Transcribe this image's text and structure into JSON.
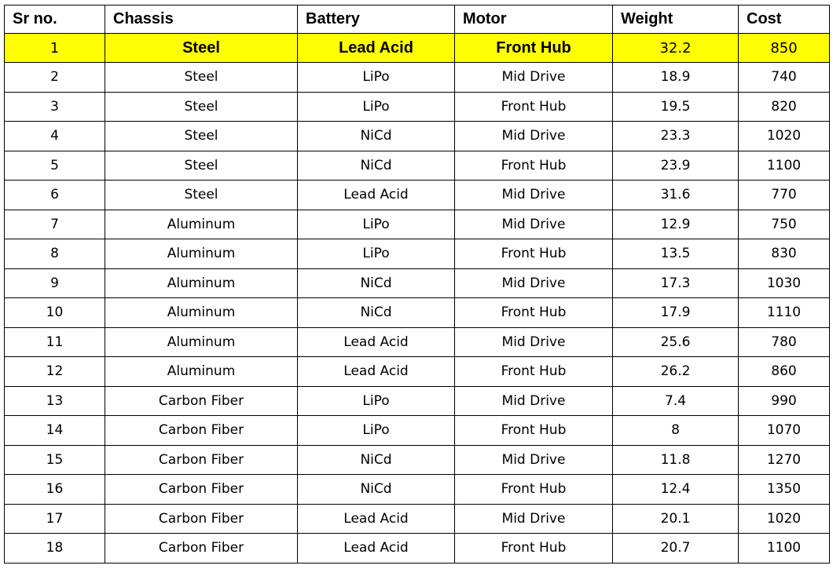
{
  "table": {
    "headers": [
      "Sr no.",
      "Chassis",
      "Battery",
      "Motor",
      "Weight",
      "Cost"
    ],
    "highlight_color": "#ffff00",
    "highlighted_row": 0,
    "rows": [
      [
        "1",
        "Steel",
        "Lead Acid",
        "Front Hub",
        "32.2",
        "850"
      ],
      [
        "2",
        "Steel",
        "LiPo",
        "Mid Drive",
        "18.9",
        "740"
      ],
      [
        "3",
        "Steel",
        "LiPo",
        "Front Hub",
        "19.5",
        "820"
      ],
      [
        "4",
        "Steel",
        "NiCd",
        "Mid Drive",
        "23.3",
        "1020"
      ],
      [
        "5",
        "Steel",
        "NiCd",
        "Front Hub",
        "23.9",
        "1100"
      ],
      [
        "6",
        "Steel",
        "Lead Acid",
        "Mid Drive",
        "31.6",
        "770"
      ],
      [
        "7",
        "Aluminum",
        "LiPo",
        "Mid Drive",
        "12.9",
        "750"
      ],
      [
        "8",
        "Aluminum",
        "LiPo",
        "Front Hub",
        "13.5",
        "830"
      ],
      [
        "9",
        "Aluminum",
        "NiCd",
        "Mid Drive",
        "17.3",
        "1030"
      ],
      [
        "10",
        "Aluminum",
        "NiCd",
        "Front Hub",
        "17.9",
        "1110"
      ],
      [
        "11",
        "Aluminum",
        "Lead Acid",
        "Mid Drive",
        "25.6",
        "780"
      ],
      [
        "12",
        "Aluminum",
        "Lead Acid",
        "Front Hub",
        "26.2",
        "860"
      ],
      [
        "13",
        "Carbon Fiber",
        "LiPo",
        "Mid Drive",
        "7.4",
        "990"
      ],
      [
        "14",
        "Carbon Fiber",
        "LiPo",
        "Front Hub",
        "8",
        "1070"
      ],
      [
        "15",
        "Carbon Fiber",
        "NiCd",
        "Mid Drive",
        "11.8",
        "1270"
      ],
      [
        "16",
        "Carbon Fiber",
        "NiCd",
        "Front Hub",
        "12.4",
        "1350"
      ],
      [
        "17",
        "Carbon Fiber",
        "Lead Acid",
        "Mid Drive",
        "20.1",
        "1020"
      ],
      [
        "18",
        "Carbon Fiber",
        "Lead Acid",
        "Front Hub",
        "20.7",
        "1100"
      ]
    ]
  }
}
